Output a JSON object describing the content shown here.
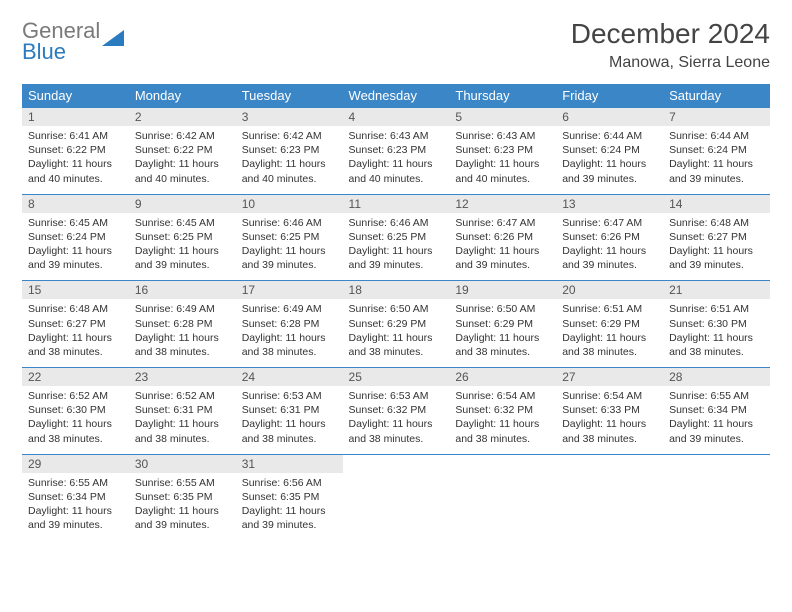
{
  "logo": {
    "word1": "General",
    "word2": "Blue"
  },
  "title": "December 2024",
  "location": "Manowa, Sierra Leone",
  "colors": {
    "header_bg": "#3b86c6",
    "header_text": "#ffffff",
    "daynum_bg": "#e9e9e9",
    "row_border": "#3b86c6",
    "logo_gray": "#7a7a7a",
    "logo_blue": "#2a7bbf"
  },
  "day_headers": [
    "Sunday",
    "Monday",
    "Tuesday",
    "Wednesday",
    "Thursday",
    "Friday",
    "Saturday"
  ],
  "weeks": [
    [
      {
        "n": "1",
        "sr": "6:41 AM",
        "ss": "6:22 PM",
        "dl": "11 hours and 40 minutes."
      },
      {
        "n": "2",
        "sr": "6:42 AM",
        "ss": "6:22 PM",
        "dl": "11 hours and 40 minutes."
      },
      {
        "n": "3",
        "sr": "6:42 AM",
        "ss": "6:23 PM",
        "dl": "11 hours and 40 minutes."
      },
      {
        "n": "4",
        "sr": "6:43 AM",
        "ss": "6:23 PM",
        "dl": "11 hours and 40 minutes."
      },
      {
        "n": "5",
        "sr": "6:43 AM",
        "ss": "6:23 PM",
        "dl": "11 hours and 40 minutes."
      },
      {
        "n": "6",
        "sr": "6:44 AM",
        "ss": "6:24 PM",
        "dl": "11 hours and 39 minutes."
      },
      {
        "n": "7",
        "sr": "6:44 AM",
        "ss": "6:24 PM",
        "dl": "11 hours and 39 minutes."
      }
    ],
    [
      {
        "n": "8",
        "sr": "6:45 AM",
        "ss": "6:24 PM",
        "dl": "11 hours and 39 minutes."
      },
      {
        "n": "9",
        "sr": "6:45 AM",
        "ss": "6:25 PM",
        "dl": "11 hours and 39 minutes."
      },
      {
        "n": "10",
        "sr": "6:46 AM",
        "ss": "6:25 PM",
        "dl": "11 hours and 39 minutes."
      },
      {
        "n": "11",
        "sr": "6:46 AM",
        "ss": "6:25 PM",
        "dl": "11 hours and 39 minutes."
      },
      {
        "n": "12",
        "sr": "6:47 AM",
        "ss": "6:26 PM",
        "dl": "11 hours and 39 minutes."
      },
      {
        "n": "13",
        "sr": "6:47 AM",
        "ss": "6:26 PM",
        "dl": "11 hours and 39 minutes."
      },
      {
        "n": "14",
        "sr": "6:48 AM",
        "ss": "6:27 PM",
        "dl": "11 hours and 39 minutes."
      }
    ],
    [
      {
        "n": "15",
        "sr": "6:48 AM",
        "ss": "6:27 PM",
        "dl": "11 hours and 38 minutes."
      },
      {
        "n": "16",
        "sr": "6:49 AM",
        "ss": "6:28 PM",
        "dl": "11 hours and 38 minutes."
      },
      {
        "n": "17",
        "sr": "6:49 AM",
        "ss": "6:28 PM",
        "dl": "11 hours and 38 minutes."
      },
      {
        "n": "18",
        "sr": "6:50 AM",
        "ss": "6:29 PM",
        "dl": "11 hours and 38 minutes."
      },
      {
        "n": "19",
        "sr": "6:50 AM",
        "ss": "6:29 PM",
        "dl": "11 hours and 38 minutes."
      },
      {
        "n": "20",
        "sr": "6:51 AM",
        "ss": "6:29 PM",
        "dl": "11 hours and 38 minutes."
      },
      {
        "n": "21",
        "sr": "6:51 AM",
        "ss": "6:30 PM",
        "dl": "11 hours and 38 minutes."
      }
    ],
    [
      {
        "n": "22",
        "sr": "6:52 AM",
        "ss": "6:30 PM",
        "dl": "11 hours and 38 minutes."
      },
      {
        "n": "23",
        "sr": "6:52 AM",
        "ss": "6:31 PM",
        "dl": "11 hours and 38 minutes."
      },
      {
        "n": "24",
        "sr": "6:53 AM",
        "ss": "6:31 PM",
        "dl": "11 hours and 38 minutes."
      },
      {
        "n": "25",
        "sr": "6:53 AM",
        "ss": "6:32 PM",
        "dl": "11 hours and 38 minutes."
      },
      {
        "n": "26",
        "sr": "6:54 AM",
        "ss": "6:32 PM",
        "dl": "11 hours and 38 minutes."
      },
      {
        "n": "27",
        "sr": "6:54 AM",
        "ss": "6:33 PM",
        "dl": "11 hours and 38 minutes."
      },
      {
        "n": "28",
        "sr": "6:55 AM",
        "ss": "6:34 PM",
        "dl": "11 hours and 39 minutes."
      }
    ],
    [
      {
        "n": "29",
        "sr": "6:55 AM",
        "ss": "6:34 PM",
        "dl": "11 hours and 39 minutes."
      },
      {
        "n": "30",
        "sr": "6:55 AM",
        "ss": "6:35 PM",
        "dl": "11 hours and 39 minutes."
      },
      {
        "n": "31",
        "sr": "6:56 AM",
        "ss": "6:35 PM",
        "dl": "11 hours and 39 minutes."
      },
      null,
      null,
      null,
      null
    ]
  ],
  "labels": {
    "sunrise": "Sunrise:",
    "sunset": "Sunset:",
    "daylight": "Daylight:"
  }
}
